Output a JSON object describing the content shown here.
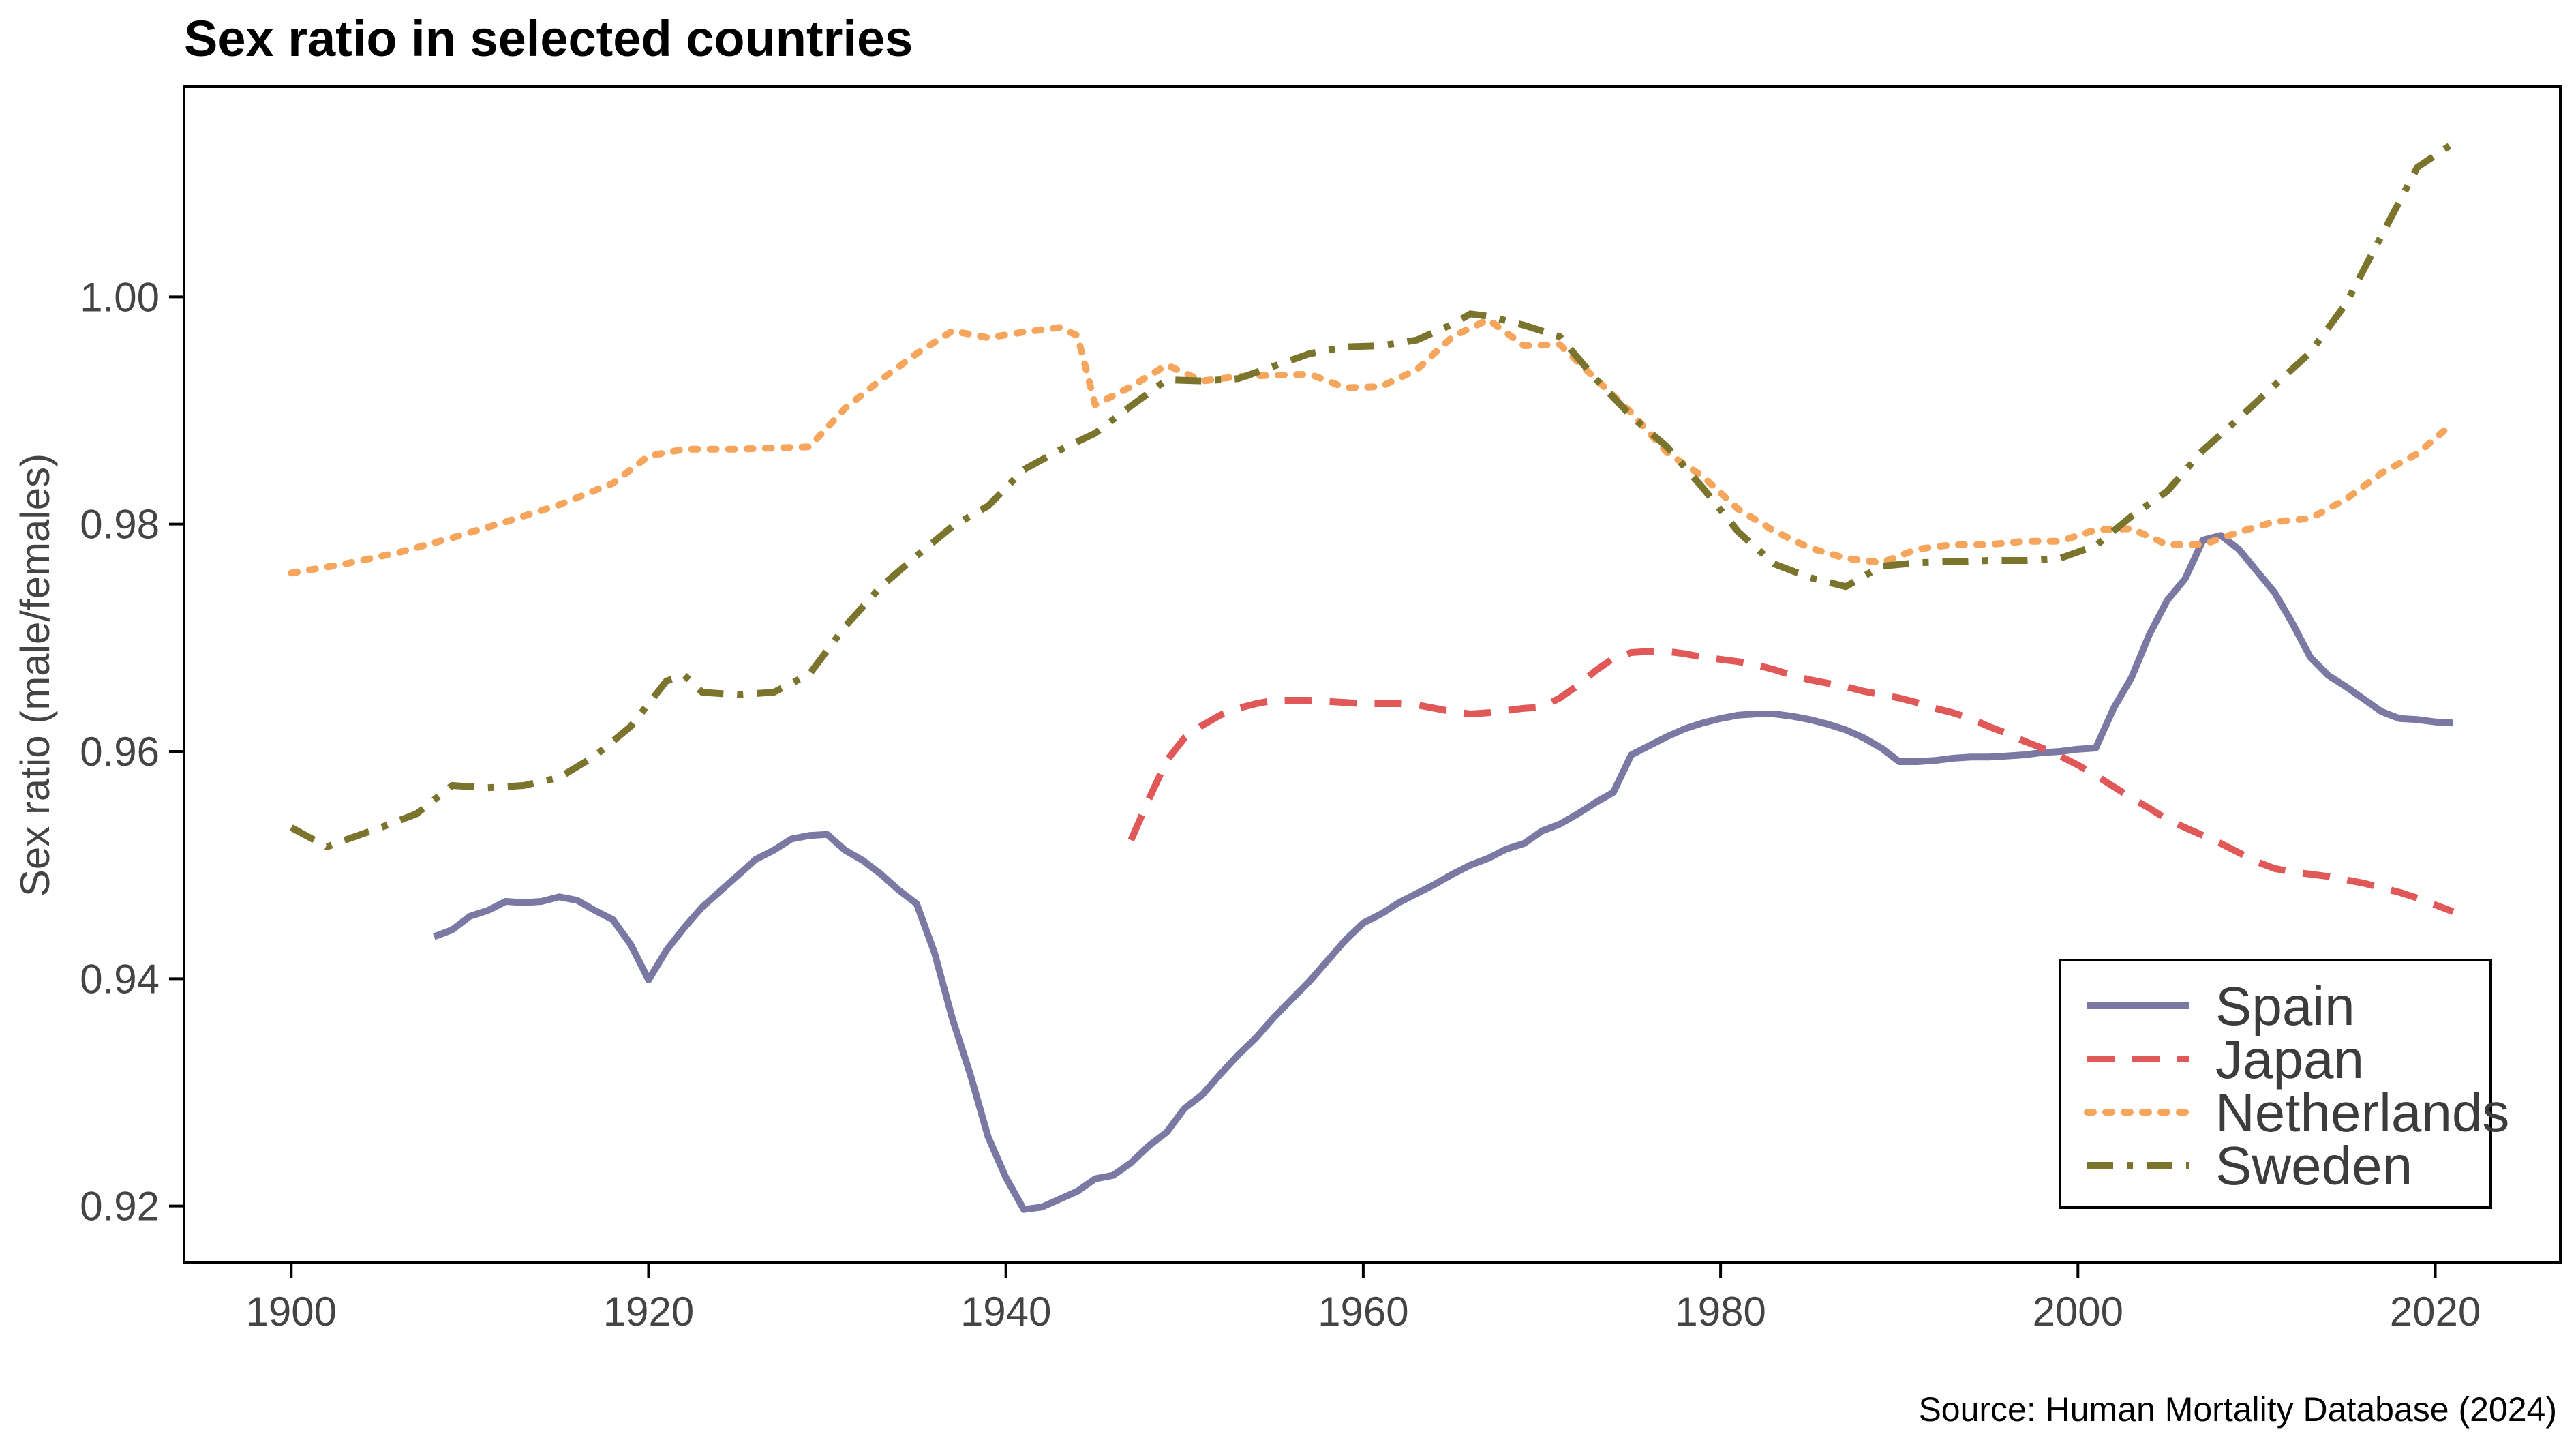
{
  "chart_data": {
    "type": "line",
    "title": "Sex ratio in selected countries",
    "xlabel": "",
    "ylabel": "Sex ratio (male/females)",
    "source": "Source: Human Mortality Database (2024)",
    "xlim": [
      1894,
      2027
    ],
    "ylim": [
      0.915,
      1.0185
    ],
    "x_ticks": [
      1900,
      1920,
      1940,
      1960,
      1980,
      2000,
      2020
    ],
    "y_ticks": [
      0.92,
      0.94,
      0.96,
      0.98,
      1.0
    ],
    "x_tick_labels": [
      "1900",
      "1920",
      "1940",
      "1960",
      "1980",
      "2000",
      "2020"
    ],
    "y_tick_labels": [
      "0.92",
      "0.94",
      "0.96",
      "0.98",
      "1.00"
    ],
    "grid": false,
    "legend": "bottom-right",
    "series": [
      {
        "name": "Spain",
        "color": "#7b78a3",
        "dash": "solid",
        "x": [
          1908,
          1909,
          1910,
          1911,
          1912,
          1913,
          1914,
          1915,
          1916,
          1917,
          1918,
          1919,
          1920,
          1921,
          1922,
          1923,
          1924,
          1925,
          1926,
          1927,
          1928,
          1929,
          1930,
          1931,
          1932,
          1933,
          1934,
          1935,
          1936,
          1937,
          1938,
          1939,
          1940,
          1941,
          1942,
          1943,
          1944,
          1945,
          1946,
          1947,
          1948,
          1949,
          1950,
          1951,
          1952,
          1953,
          1954,
          1955,
          1956,
          1957,
          1958,
          1959,
          1960,
          1961,
          1962,
          1963,
          1964,
          1965,
          1966,
          1967,
          1968,
          1969,
          1970,
          1971,
          1972,
          1973,
          1974,
          1975,
          1976,
          1977,
          1978,
          1979,
          1980,
          1981,
          1982,
          1983,
          1984,
          1985,
          1986,
          1987,
          1988,
          1989,
          1990,
          1991,
          1992,
          1993,
          1994,
          1995,
          1996,
          1997,
          1998,
          1999,
          2000,
          2001,
          2002,
          2003,
          2004,
          2005,
          2006,
          2007,
          2008,
          2009,
          2010,
          2011,
          2012,
          2013,
          2014,
          2015,
          2016,
          2017,
          2018,
          2019,
          2020,
          2021
        ],
        "y": [
          0.9437,
          0.9443,
          0.9455,
          0.946,
          0.9468,
          0.9467,
          0.9468,
          0.9472,
          0.9469,
          0.946,
          0.9452,
          0.943,
          0.9399,
          0.9425,
          0.9445,
          0.9463,
          0.9477,
          0.9491,
          0.9505,
          0.9513,
          0.9523,
          0.9526,
          0.9527,
          0.9513,
          0.9504,
          0.9492,
          0.9478,
          0.9466,
          0.9423,
          0.9365,
          0.9316,
          0.9261,
          0.9225,
          0.9197,
          0.9199,
          0.9206,
          0.9213,
          0.9224,
          0.9227,
          0.9238,
          0.9253,
          0.9265,
          0.9286,
          0.9298,
          0.9316,
          0.9333,
          0.9348,
          0.9366,
          0.9382,
          0.9398,
          0.9416,
          0.9434,
          0.9449,
          0.9457,
          0.9467,
          0.9475,
          0.9483,
          0.9492,
          0.95,
          0.9506,
          0.9514,
          0.9519,
          0.953,
          0.9536,
          0.9545,
          0.9555,
          0.9564,
          0.9597,
          0.9605,
          0.9613,
          0.962,
          0.9625,
          0.9629,
          0.9632,
          0.9633,
          0.9633,
          0.9631,
          0.9628,
          0.9624,
          0.9619,
          0.9612,
          0.9603,
          0.9591,
          0.9591,
          0.9592,
          0.9594,
          0.9595,
          0.9595,
          0.9596,
          0.9597,
          0.9599,
          0.96,
          0.9602,
          0.9603,
          0.9638,
          0.9665,
          0.9703,
          0.9733,
          0.9752,
          0.9786,
          0.979,
          0.9778,
          0.9759,
          0.974,
          0.9713,
          0.9683,
          0.9667,
          0.9657,
          0.9646,
          0.9635,
          0.9629,
          0.9628,
          0.9626,
          0.9625
        ]
      },
      {
        "name": "Japan",
        "color": "#e15858",
        "dash": "dashed",
        "x": [
          1947,
          1948,
          1949,
          1950,
          1951,
          1952,
          1953,
          1954,
          1955,
          1956,
          1957,
          1958,
          1959,
          1960,
          1961,
          1962,
          1963,
          1964,
          1965,
          1966,
          1967,
          1968,
          1969,
          1970,
          1971,
          1972,
          1973,
          1974,
          1975,
          1976,
          1977,
          1978,
          1979,
          1980,
          1981,
          1982,
          1983,
          1984,
          1985,
          1986,
          1987,
          1988,
          1989,
          1990,
          1991,
          1992,
          1993,
          1994,
          1995,
          1996,
          1997,
          1998,
          1999,
          2000,
          2001,
          2002,
          2003,
          2004,
          2005,
          2006,
          2007,
          2008,
          2009,
          2010,
          2011,
          2012,
          2013,
          2014,
          2015,
          2016,
          2017,
          2018,
          2019,
          2020,
          2021
        ],
        "y": [
          0.9522,
          0.9558,
          0.9592,
          0.9612,
          0.9623,
          0.9632,
          0.9638,
          0.9642,
          0.9645,
          0.9645,
          0.9645,
          0.9644,
          0.9643,
          0.9642,
          0.9642,
          0.9642,
          0.9641,
          0.9638,
          0.9635,
          0.9633,
          0.9634,
          0.9636,
          0.9638,
          0.9639,
          0.9647,
          0.9658,
          0.9671,
          0.9682,
          0.9687,
          0.9688,
          0.9688,
          0.9686,
          0.9683,
          0.9681,
          0.9679,
          0.9676,
          0.9672,
          0.9667,
          0.9663,
          0.966,
          0.9657,
          0.9653,
          0.965,
          0.9647,
          0.9643,
          0.9638,
          0.9634,
          0.9629,
          0.9622,
          0.9616,
          0.9609,
          0.9603,
          0.9596,
          0.9588,
          0.9579,
          0.9569,
          0.9559,
          0.955,
          0.954,
          0.9533,
          0.9526,
          0.9519,
          0.9511,
          0.9503,
          0.9497,
          0.9494,
          0.9492,
          0.949,
          0.9487,
          0.9484,
          0.948,
          0.9476,
          0.9471,
          0.9465,
          0.9459
        ]
      },
      {
        "name": "Netherlands",
        "color": "#f5a55c",
        "dash": "dotted",
        "x": [
          1900,
          1903,
          1906,
          1909,
          1912,
          1915,
          1918,
          1920,
          1922,
          1925,
          1929,
          1931,
          1933,
          1935,
          1937,
          1939,
          1941,
          1943,
          1944,
          1945,
          1947,
          1949,
          1951,
          1953,
          1955,
          1957,
          1959,
          1961,
          1963,
          1965,
          1967,
          1969,
          1971,
          1973,
          1975,
          1977,
          1979,
          1981,
          1983,
          1985,
          1987,
          1989,
          1991,
          1993,
          1995,
          1997,
          1999,
          2001,
          2003,
          2005,
          2007,
          2009,
          2011,
          2013,
          2015,
          2017,
          2019,
          2021
        ],
        "y": [
          0.9757,
          0.9765,
          0.9775,
          0.9788,
          0.9802,
          0.9817,
          0.9836,
          0.986,
          0.9866,
          0.9866,
          0.9868,
          0.9902,
          0.9927,
          0.995,
          0.997,
          0.9964,
          0.9969,
          0.9973,
          0.9966,
          0.9905,
          0.9921,
          0.994,
          0.9926,
          0.993,
          0.9931,
          0.9932,
          0.992,
          0.9921,
          0.9936,
          0.9965,
          0.998,
          0.9957,
          0.9958,
          0.9928,
          0.9898,
          0.9863,
          0.9842,
          0.9813,
          0.9794,
          0.9779,
          0.977,
          0.9766,
          0.9778,
          0.9782,
          0.9782,
          0.9785,
          0.9785,
          0.9795,
          0.9796,
          0.9782,
          0.9782,
          0.9793,
          0.9802,
          0.9805,
          0.9822,
          0.9845,
          0.9862,
          0.9889
        ]
      },
      {
        "name": "Sweden",
        "color": "#7a742c",
        "dash": "dashdot",
        "x": [
          1900,
          1902,
          1903,
          1905,
          1907,
          1909,
          1911,
          1913,
          1915,
          1917,
          1919,
          1921,
          1922,
          1923,
          1925,
          1927,
          1929,
          1931,
          1933,
          1935,
          1937,
          1939,
          1941,
          1943,
          1945,
          1947,
          1949,
          1951,
          1953,
          1955,
          1957,
          1959,
          1961,
          1963,
          1965,
          1966,
          1967,
          1969,
          1971,
          1973,
          1975,
          1977,
          1979,
          1981,
          1983,
          1985,
          1987,
          1989,
          1991,
          1993,
          1995,
          1997,
          1999,
          2001,
          2003,
          2005,
          2007,
          2009,
          2011,
          2013,
          2015,
          2017,
          2019,
          2021
        ],
        "y": [
          0.9533,
          0.9516,
          0.9522,
          0.9533,
          0.9545,
          0.957,
          0.9568,
          0.957,
          0.9577,
          0.9596,
          0.9622,
          0.9662,
          0.9667,
          0.9652,
          0.965,
          0.9652,
          0.9668,
          0.971,
          0.9745,
          0.9772,
          0.9798,
          0.9816,
          0.9848,
          0.9865,
          0.988,
          0.9904,
          0.9927,
          0.9926,
          0.9928,
          0.9939,
          0.995,
          0.9956,
          0.9957,
          0.9962,
          0.9976,
          0.9985,
          0.9983,
          0.9975,
          0.9965,
          0.9928,
          0.9895,
          0.9868,
          0.9832,
          0.9793,
          0.9765,
          0.9753,
          0.9745,
          0.9763,
          0.9766,
          0.9767,
          0.9768,
          0.9768,
          0.977,
          0.9781,
          0.9807,
          0.9829,
          0.9865,
          0.9893,
          0.9922,
          0.9951,
          0.9994,
          1.0054,
          1.0114,
          1.0135
        ]
      }
    ]
  }
}
